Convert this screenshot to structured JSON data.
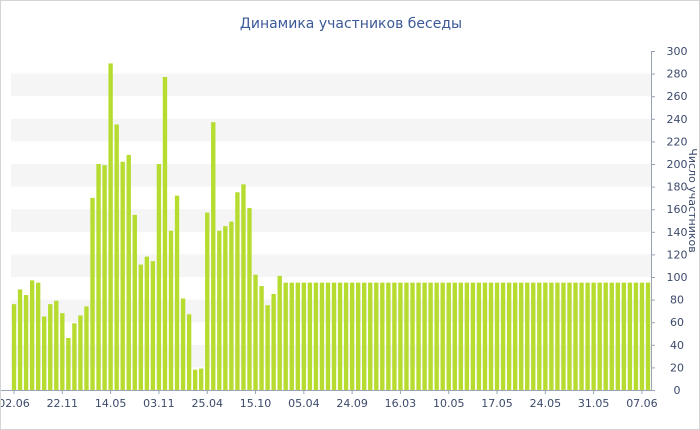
{
  "chart_data": {
    "type": "bar",
    "title": "Динамика участников беседы",
    "ylabel": "Число участников",
    "xlabel": "",
    "ylim": [
      0,
      300
    ],
    "y_ticks": [
      0,
      20,
      40,
      60,
      80,
      100,
      120,
      140,
      160,
      180,
      200,
      220,
      240,
      260,
      280,
      300
    ],
    "x_tick_labels": [
      {
        "label": "02.06",
        "index": 0
      },
      {
        "label": "22.11",
        "index": 8
      },
      {
        "label": "14.05",
        "index": 16
      },
      {
        "label": "03.11",
        "index": 24
      },
      {
        "label": "25.04",
        "index": 32
      },
      {
        "label": "15.10",
        "index": 40
      },
      {
        "label": "05.04",
        "index": 48
      },
      {
        "label": "24.09",
        "index": 56
      },
      {
        "label": "16.03",
        "index": 64
      },
      {
        "label": "10.05",
        "index": 72
      },
      {
        "label": "17.05",
        "index": 80
      },
      {
        "label": "24.05",
        "index": 88
      },
      {
        "label": "31.05",
        "index": 96
      },
      {
        "label": "07.06",
        "index": 104
      }
    ],
    "grid": "horizontal bands",
    "axis_position": "right",
    "bar_color": "#b5dc2e",
    "values": [
      76,
      89,
      84,
      97,
      95,
      65,
      76,
      79,
      68,
      46,
      59,
      66,
      74,
      170,
      200,
      199,
      289,
      235,
      202,
      208,
      155,
      111,
      118,
      114,
      200,
      277,
      141,
      172,
      81,
      67,
      18,
      19,
      157,
      237,
      141,
      145,
      149,
      175,
      182,
      161,
      102,
      92,
      75,
      85,
      101,
      95,
      95,
      95,
      95,
      95,
      95,
      95,
      95,
      95,
      95,
      95,
      95,
      95,
      95,
      95,
      95,
      95,
      95,
      95,
      95,
      95,
      95,
      95,
      95,
      95,
      95,
      95,
      95,
      95,
      95,
      95,
      95,
      95,
      95,
      95,
      95,
      95,
      95,
      95,
      95,
      95,
      95,
      95,
      95,
      95,
      95,
      95,
      95,
      95,
      95,
      95,
      95,
      95,
      95,
      95,
      95,
      95,
      95,
      95,
      95,
      95
    ]
  }
}
